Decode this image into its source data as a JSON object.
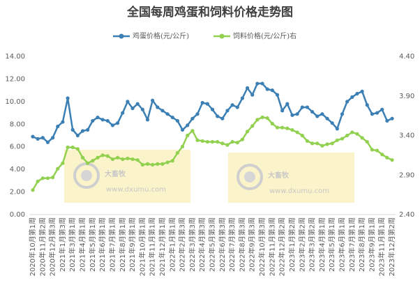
{
  "chart_data": {
    "type": "line",
    "title": "全国每周鸡蛋和饲料价格走势图",
    "categories": [
      "2020年10月第1周",
      null,
      "2020年11月第2周",
      null,
      "2020年12月第3周",
      null,
      "2021年1月第3周",
      null,
      "2021年3月第1周",
      null,
      "2021年4月第1周",
      null,
      "2021年5月第1周",
      null,
      "2021年6月第1周",
      null,
      "2021年7月第1周",
      null,
      "2021年8月第1周",
      null,
      "2021年9月第1周",
      null,
      "2021年10月第1周",
      null,
      "2021年11月第1周",
      null,
      "2021年12月第1周",
      null,
      "2022年1月第1周",
      null,
      "2022年2月第3周",
      null,
      "2022年3月第3周",
      null,
      "2022年4月第3周",
      null,
      "2022年5月第3周",
      null,
      "2022年6月第3周",
      null,
      "2022年7月第3周",
      null,
      "2022年8月第3周",
      null,
      "2022年9月第3周",
      null,
      "2022年10月第3周",
      null,
      "2022年11月第3周",
      null,
      "2022年12月第2周",
      null,
      "2023年1月第2周",
      null,
      "2023年2月第2周",
      null,
      "2023年3月第2周",
      null,
      "2023年4月第1周",
      null,
      "2023年5月第1周",
      null,
      "2023年6月第1周",
      null,
      "2023年7月第1周",
      null,
      "2023年8月第1周",
      null,
      "2023年9月第1周",
      null,
      "2023年11月第1周",
      null,
      "2023年12月第2周"
    ],
    "series": [
      {
        "name": "鸡蛋价格(元/公斤)",
        "color": "#3b7fb4",
        "values": [
          6.9,
          6.7,
          6.8,
          6.4,
          6.8,
          7.8,
          8.2,
          10.3,
          7.5,
          7.0,
          7.4,
          7.5,
          8.3,
          8.6,
          8.4,
          8.3,
          7.9,
          8.1,
          9.0,
          10.0,
          9.4,
          9.8,
          9.3,
          8.4,
          10.1,
          9.5,
          9.2,
          8.9,
          8.6,
          8.3,
          7.5,
          7.9,
          8.5,
          8.9,
          9.9,
          9.8,
          9.3,
          8.7,
          8.5,
          9.2,
          9.7,
          9.5,
          10.3,
          11.2,
          10.6,
          11.6,
          11.6,
          11.1,
          11.0,
          10.6,
          9.2,
          9.8,
          8.8,
          8.9,
          9.5,
          9.5,
          9.1,
          8.7,
          8.9,
          8.5,
          8.1,
          7.6,
          8.9,
          10.0,
          10.4,
          10.7,
          10.9,
          9.7,
          8.9,
          9.0,
          9.3,
          8.3,
          8.5
        ]
      },
      {
        "name": "饲料价格(元/公斤)右",
        "color": "#92d050",
        "axis": "y2",
        "values": [
          2.71,
          2.82,
          2.86,
          2.86,
          2.87,
          2.98,
          3.05,
          3.25,
          3.25,
          3.23,
          3.12,
          3.05,
          3.08,
          3.12,
          3.15,
          3.14,
          3.1,
          3.12,
          3.1,
          3.11,
          3.1,
          3.09,
          3.03,
          3.04,
          3.03,
          3.04,
          3.04,
          3.06,
          3.08,
          3.18,
          3.26,
          3.4,
          3.46,
          3.34,
          3.33,
          3.32,
          3.32,
          3.32,
          3.3,
          3.28,
          3.32,
          3.31,
          3.35,
          3.45,
          3.52,
          3.6,
          3.63,
          3.62,
          3.55,
          3.5,
          3.5,
          3.49,
          3.47,
          3.44,
          3.4,
          3.33,
          3.3,
          3.3,
          3.27,
          3.29,
          3.3,
          3.34,
          3.36,
          3.4,
          3.44,
          3.42,
          3.37,
          3.32,
          3.22,
          3.21,
          3.16,
          3.12,
          3.09
        ]
      }
    ],
    "ylim": [
      0,
      14
    ],
    "yticks": [
      {
        "value": 0,
        "label": "0.00"
      },
      {
        "value": 2,
        "label": "2.00"
      },
      {
        "value": 4,
        "label": "4.00"
      },
      {
        "value": 6,
        "label": "6.00"
      },
      {
        "value": 8,
        "label": "8.00"
      },
      {
        "value": 10,
        "label": "10.00"
      },
      {
        "value": 12,
        "label": "12.00"
      },
      {
        "value": 14,
        "label": "14.00"
      }
    ],
    "y2lim": [
      2.4,
      4.4
    ],
    "y2ticks": [
      {
        "value": 2.4,
        "label": "2.40"
      },
      {
        "value": 2.9,
        "label": "2.90"
      },
      {
        "value": 3.4,
        "label": "3.40"
      },
      {
        "value": 3.9,
        "label": "3.90"
      },
      {
        "value": 4.4,
        "label": "4.40"
      }
    ],
    "grid": false,
    "legend": "top",
    "watermarks": [
      {
        "name": "大畜牧",
        "url": "www.dxumu.com"
      },
      {
        "name": "大畜牧",
        "url": "www.dxumu.com"
      }
    ]
  }
}
